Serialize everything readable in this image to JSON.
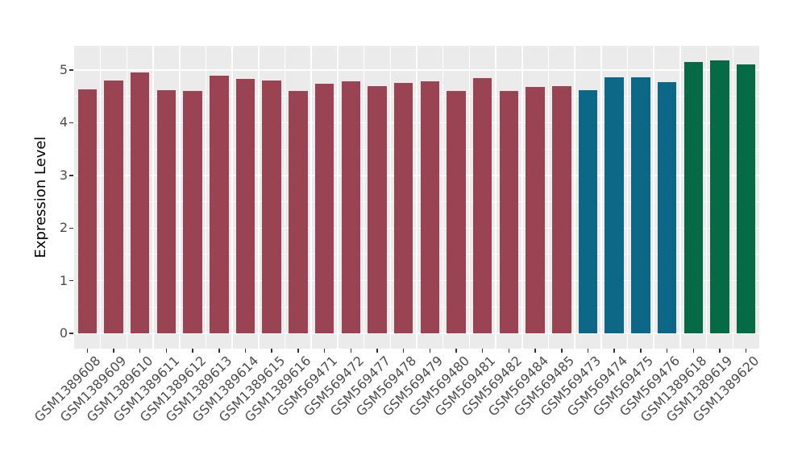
{
  "figure": {
    "background": "#FFFFFF",
    "panel_background": "#EBEBEB",
    "grid_major_color": "#FFFFFF",
    "grid_minor_color": "rgba(255,255,255,0.65)",
    "axis_tick_color": "#333333",
    "tick_label_color": "#4D4D4D",
    "axis_title_color": "#000000",
    "palette": [
      "#9A4352",
      "#0D6787",
      "#056B46"
    ]
  },
  "chart_data": {
    "type": "bar",
    "title": "",
    "xlabel": "",
    "ylabel": "Expression Level",
    "legend": "none",
    "grid": true,
    "categories": [
      "GSM1389608",
      "GSM1389609",
      "GSM1389610",
      "GSM1389611",
      "GSM1389612",
      "GSM1389613",
      "GSM1389614",
      "GSM1389615",
      "GSM1389616",
      "GSM569471",
      "GSM569472",
      "GSM569477",
      "GSM569478",
      "GSM569479",
      "GSM569480",
      "GSM569481",
      "GSM569482",
      "GSM569484",
      "GSM569485",
      "GSM569473",
      "GSM569474",
      "GSM569475",
      "GSM569476",
      "GSM1389618",
      "GSM1389619",
      "GSM1389620"
    ],
    "values": [
      4.63,
      4.81,
      4.95,
      4.62,
      4.6,
      4.89,
      4.83,
      4.8,
      4.61,
      4.74,
      4.78,
      4.7,
      4.76,
      4.78,
      4.6,
      4.85,
      4.61,
      4.68,
      4.7,
      4.62,
      4.86,
      4.87,
      4.77,
      5.15,
      5.19,
      5.11
    ],
    "bar_colors": [
      "#9A4352",
      "#9A4352",
      "#9A4352",
      "#9A4352",
      "#9A4352",
      "#9A4352",
      "#9A4352",
      "#9A4352",
      "#9A4352",
      "#9A4352",
      "#9A4352",
      "#9A4352",
      "#9A4352",
      "#9A4352",
      "#9A4352",
      "#9A4352",
      "#9A4352",
      "#9A4352",
      "#9A4352",
      "#0D6787",
      "#0D6787",
      "#0D6787",
      "#0D6787",
      "#056B46",
      "#056B46",
      "#056B46"
    ],
    "y_ticks": [
      0,
      1,
      2,
      3,
      4,
      5
    ],
    "y_tick_labels": [
      "0",
      "1",
      "2",
      "3",
      "4",
      "5"
    ],
    "y_minor_ticks": [
      0.5,
      1.5,
      2.5,
      3.5,
      4.5
    ],
    "ylim": [
      -0.29,
      5.46
    ]
  }
}
